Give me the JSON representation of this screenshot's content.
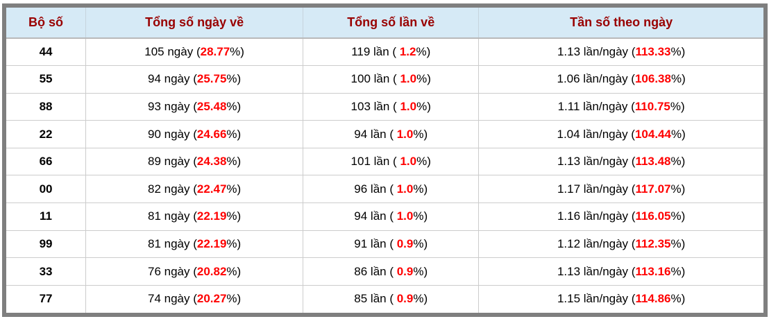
{
  "colors": {
    "header_bg": "#d6eaf6",
    "header_text": "#990000",
    "accent_red": "#ff0000",
    "frame_border": "#7f7f7f",
    "grid_line": "#cccccc"
  },
  "table": {
    "headers": [
      "Bộ số",
      "Tổng số ngày về",
      "Tổng số lần về",
      "Tần số theo ngày"
    ],
    "rows": [
      {
        "pair": "44",
        "days_text": "105 ngày (",
        "days_pct": "28.77",
        "days_close": "%)",
        "times_text": "119 lần ( ",
        "times_pct": "1.2",
        "times_close": "%)",
        "freq_text": "1.13 lần/ngày (",
        "freq_pct": "113.33",
        "freq_close": "%)"
      },
      {
        "pair": "55",
        "days_text": "94 ngày (",
        "days_pct": "25.75",
        "days_close": "%)",
        "times_text": "100 lần ( ",
        "times_pct": "1.0",
        "times_close": "%)",
        "freq_text": "1.06 lần/ngày (",
        "freq_pct": "106.38",
        "freq_close": "%)"
      },
      {
        "pair": "88",
        "days_text": "93 ngày (",
        "days_pct": "25.48",
        "days_close": "%)",
        "times_text": "103 lần ( ",
        "times_pct": "1.0",
        "times_close": "%)",
        "freq_text": "1.11 lần/ngày (",
        "freq_pct": "110.75",
        "freq_close": "%)"
      },
      {
        "pair": "22",
        "days_text": "90 ngày (",
        "days_pct": "24.66",
        "days_close": "%)",
        "times_text": "94 lần ( ",
        "times_pct": "1.0",
        "times_close": "%)",
        "freq_text": "1.04 lần/ngày (",
        "freq_pct": "104.44",
        "freq_close": "%)"
      },
      {
        "pair": "66",
        "days_text": "89 ngày (",
        "days_pct": "24.38",
        "days_close": "%)",
        "times_text": "101 lần ( ",
        "times_pct": "1.0",
        "times_close": "%)",
        "freq_text": "1.13 lần/ngày (",
        "freq_pct": "113.48",
        "freq_close": "%)"
      },
      {
        "pair": "00",
        "days_text": "82 ngày (",
        "days_pct": "22.47",
        "days_close": "%)",
        "times_text": "96 lần ( ",
        "times_pct": "1.0",
        "times_close": "%)",
        "freq_text": "1.17 lần/ngày (",
        "freq_pct": "117.07",
        "freq_close": "%)"
      },
      {
        "pair": "11",
        "days_text": "81 ngày (",
        "days_pct": "22.19",
        "days_close": "%)",
        "times_text": "94 lần ( ",
        "times_pct": "1.0",
        "times_close": "%)",
        "freq_text": "1.16 lần/ngày (",
        "freq_pct": "116.05",
        "freq_close": "%)"
      },
      {
        "pair": "99",
        "days_text": "81 ngày (",
        "days_pct": "22.19",
        "days_close": "%)",
        "times_text": "91 lần ( ",
        "times_pct": "0.9",
        "times_close": "%)",
        "freq_text": "1.12 lần/ngày (",
        "freq_pct": "112.35",
        "freq_close": "%)"
      },
      {
        "pair": "33",
        "days_text": "76 ngày (",
        "days_pct": "20.82",
        "days_close": "%)",
        "times_text": "86 lần ( ",
        "times_pct": "0.9",
        "times_close": "%)",
        "freq_text": "1.13 lần/ngày (",
        "freq_pct": "113.16",
        "freq_close": "%)"
      },
      {
        "pair": "77",
        "days_text": "74 ngày (",
        "days_pct": "20.27",
        "days_close": "%)",
        "times_text": "85 lần ( ",
        "times_pct": "0.9",
        "times_close": "%)",
        "freq_text": "1.15 lần/ngày (",
        "freq_pct": "114.86",
        "freq_close": "%)"
      }
    ]
  }
}
